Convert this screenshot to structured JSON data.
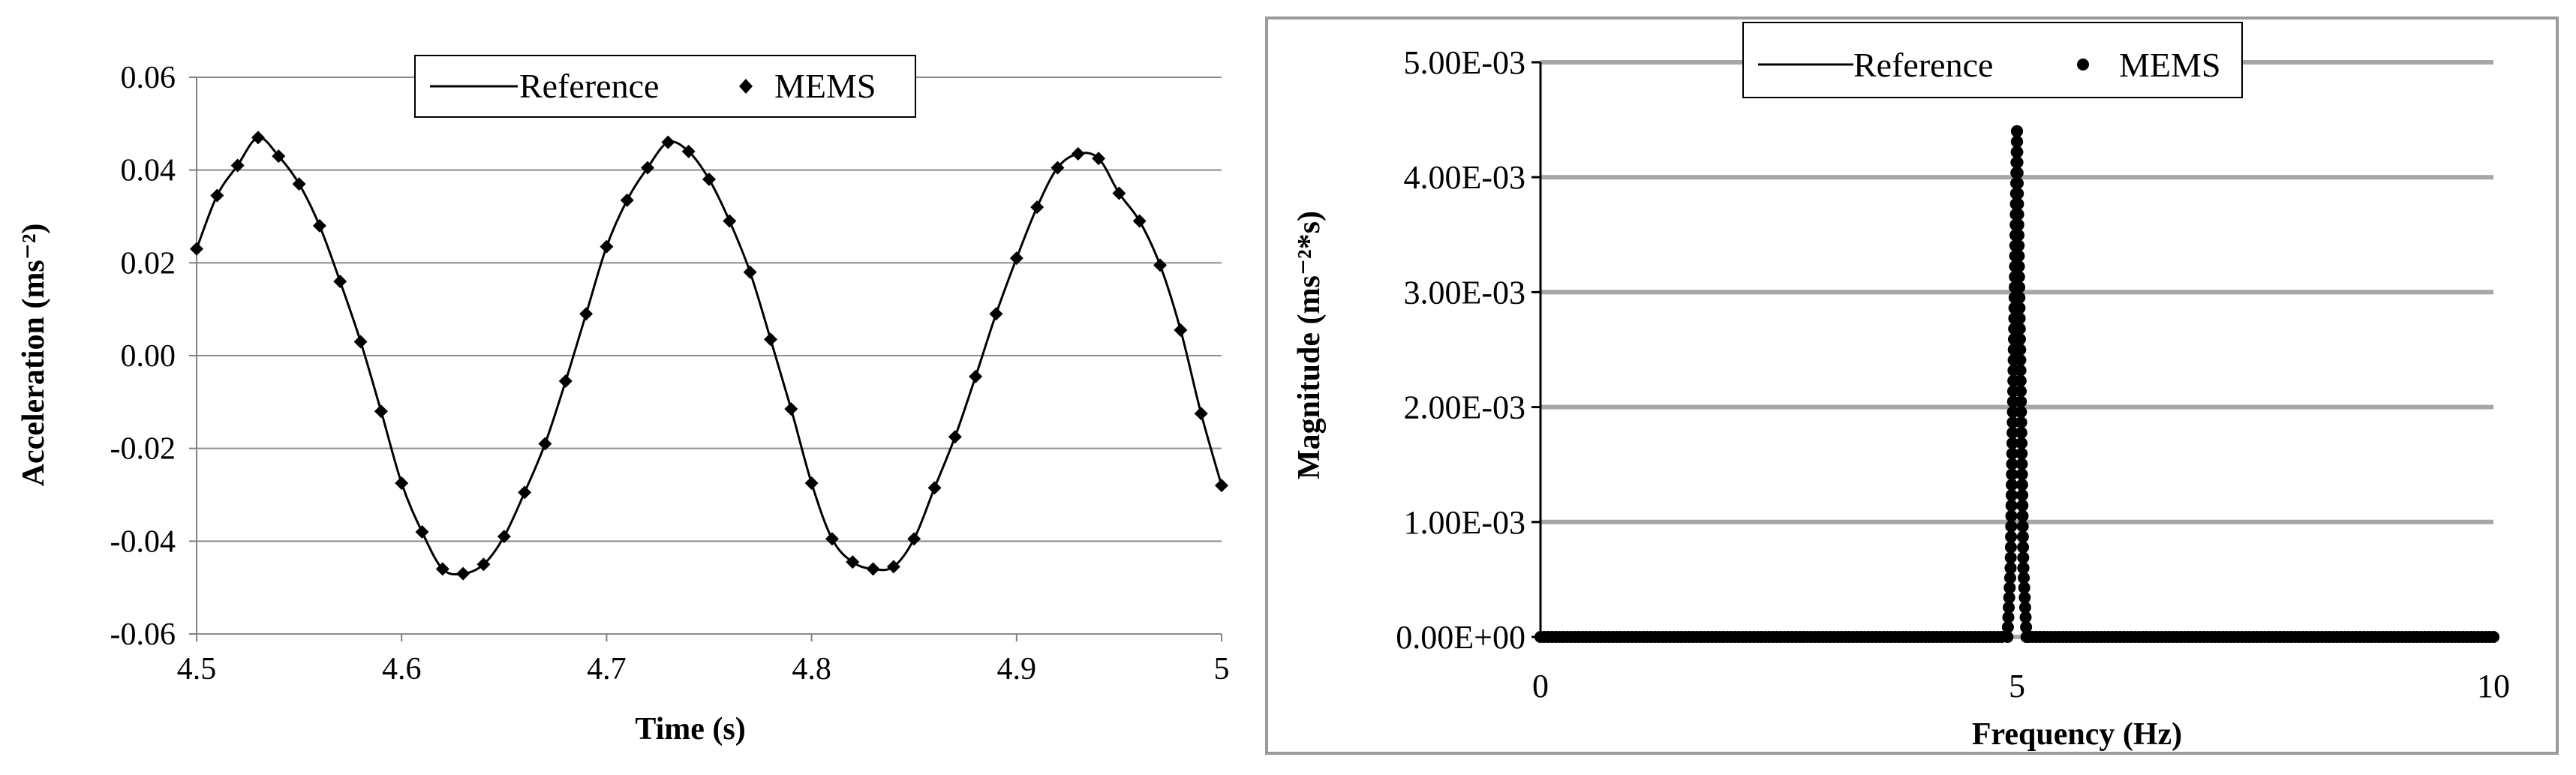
{
  "chart_data": [
    {
      "type": "line",
      "xlabel": "Time (s)",
      "ylabel": "Acceleration   (ms⁻²)",
      "xlim": [
        4.5,
        5.0
      ],
      "ylim": [
        -0.06,
        0.06
      ],
      "xticks": [
        "4.5",
        "4.6",
        "4.7",
        "4.8",
        "4.9",
        "5"
      ],
      "yticks": [
        "0.06",
        "0.04",
        "0.02",
        "0.00",
        "-0.02",
        "-0.04",
        "-0.06"
      ],
      "grid": "horizontal",
      "legend_position": "top-center",
      "series": [
        {
          "name": "Reference",
          "style": "line",
          "x": [
            4.5,
            4.51,
            4.52,
            4.53,
            4.54,
            4.55,
            4.56,
            4.57,
            4.58,
            4.59,
            4.6,
            4.61,
            4.62,
            4.63,
            4.64,
            4.65,
            4.66,
            4.67,
            4.68,
            4.69,
            4.7,
            4.71,
            4.72,
            4.73,
            4.74,
            4.75,
            4.76,
            4.77,
            4.78,
            4.79,
            4.8,
            4.81,
            4.82,
            4.83,
            4.84,
            4.85,
            4.86,
            4.87,
            4.88,
            4.89,
            4.9,
            4.91,
            4.92,
            4.93,
            4.94,
            4.95,
            4.96,
            4.97,
            4.98,
            4.99,
            5.0
          ],
          "y": [
            0.023,
            0.0345,
            0.041,
            0.047,
            0.043,
            0.037,
            0.028,
            0.016,
            0.003,
            -0.012,
            -0.0275,
            -0.038,
            -0.046,
            -0.047,
            -0.045,
            -0.039,
            -0.0295,
            -0.019,
            -0.0055,
            0.009,
            0.0235,
            0.0335,
            0.0405,
            0.046,
            0.044,
            0.038,
            0.029,
            0.018,
            0.0035,
            -0.0115,
            -0.0275,
            -0.0395,
            -0.0445,
            -0.046,
            -0.0455,
            -0.0395,
            -0.0285,
            -0.0175,
            -0.0045,
            0.009,
            0.021,
            0.032,
            0.0405,
            0.0435,
            0.0425,
            0.035,
            0.029,
            0.0195,
            0.0055,
            -0.0125,
            -0.028
          ]
        },
        {
          "name": "MEMS",
          "style": "markers",
          "x": [
            4.5,
            4.51,
            4.52,
            4.53,
            4.54,
            4.55,
            4.56,
            4.57,
            4.58,
            4.59,
            4.6,
            4.61,
            4.62,
            4.63,
            4.64,
            4.65,
            4.66,
            4.67,
            4.68,
            4.69,
            4.7,
            4.71,
            4.72,
            4.73,
            4.74,
            4.75,
            4.76,
            4.77,
            4.78,
            4.79,
            4.8,
            4.81,
            4.82,
            4.83,
            4.84,
            4.85,
            4.86,
            4.87,
            4.88,
            4.89,
            4.9,
            4.91,
            4.92,
            4.93,
            4.94,
            4.95,
            4.96,
            4.97,
            4.98,
            4.99,
            5.0
          ],
          "y": [
            0.023,
            0.0345,
            0.041,
            0.047,
            0.043,
            0.037,
            0.028,
            0.016,
            0.003,
            -0.012,
            -0.0275,
            -0.038,
            -0.046,
            -0.047,
            -0.045,
            -0.039,
            -0.0295,
            -0.019,
            -0.0055,
            0.009,
            0.0235,
            0.0335,
            0.0405,
            0.046,
            0.044,
            0.038,
            0.029,
            0.018,
            0.0035,
            -0.0115,
            -0.0275,
            -0.0395,
            -0.0445,
            -0.046,
            -0.0455,
            -0.0395,
            -0.0285,
            -0.0175,
            -0.0045,
            0.009,
            0.021,
            0.032,
            0.0405,
            0.0435,
            0.0425,
            0.035,
            0.029,
            0.0195,
            0.0055,
            -0.0125,
            -0.028
          ]
        }
      ]
    },
    {
      "type": "line",
      "xlabel": "Frequency (Hz)",
      "ylabel": "Magnitude (ms⁻²*s)",
      "xlim": [
        0,
        10
      ],
      "ylim": [
        0,
        0.005
      ],
      "xticks": [
        "0",
        "5",
        "10"
      ],
      "yticks": [
        "5.00E-03",
        "4.00E-03",
        "3.00E-03",
        "2.00E-03",
        "1.00E-03",
        "0.00E+00"
      ],
      "grid": "horizontal",
      "legend_position": "top-center",
      "series": [
        {
          "name": "Reference",
          "style": "line",
          "x": [
            0,
            4.9,
            4.933,
            4.967,
            5.0,
            5.033,
            5.067,
            5.1,
            10
          ],
          "y": [
            0,
            0,
            0.0006,
            0.0025,
            0.0044,
            0.0025,
            0.0006,
            0,
            0
          ]
        },
        {
          "name": "MEMS",
          "style": "markers",
          "x": [
            0,
            4.9,
            4.933,
            4.967,
            5.0,
            5.033,
            5.067,
            5.1,
            10
          ],
          "y": [
            0,
            0,
            0.0006,
            0.0025,
            0.0044,
            0.0025,
            0.0006,
            0,
            0
          ]
        }
      ]
    }
  ]
}
